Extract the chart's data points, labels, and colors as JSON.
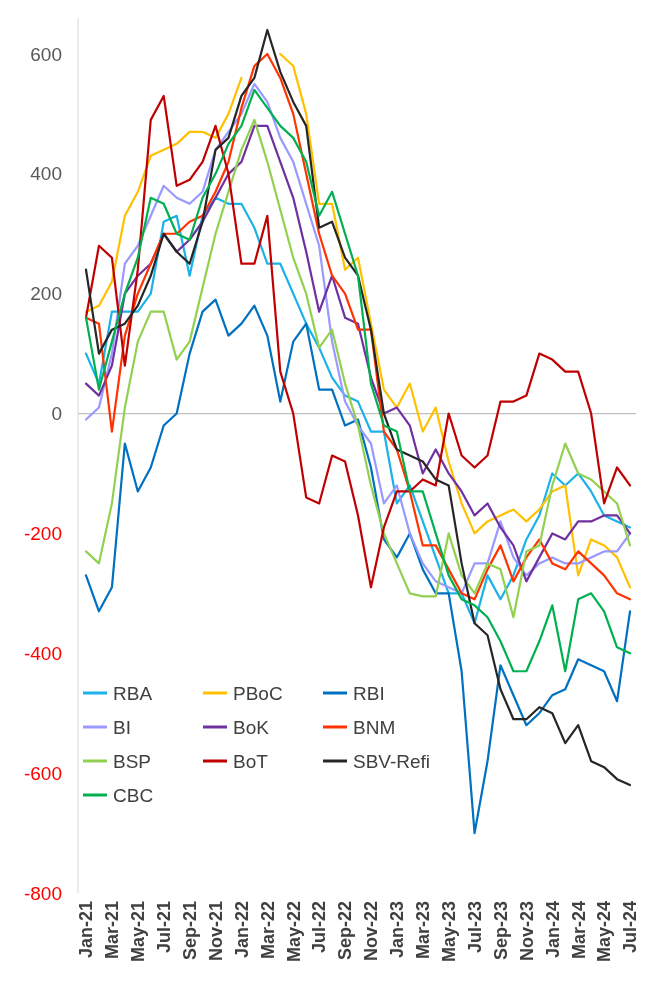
{
  "chart_data": {
    "type": "line",
    "categories": [
      "Jan-21",
      null,
      "Mar-21",
      null,
      "May-21",
      null,
      "Jul-21",
      null,
      "Sep-21",
      null,
      "Nov-21",
      null,
      "Jan-22",
      null,
      "Mar-22",
      null,
      "May-22",
      null,
      "Jul-22",
      null,
      "Sep-22",
      null,
      "Nov-22",
      null,
      "Jan-23",
      null,
      "Mar-23",
      null,
      "May-23",
      null,
      "Jul-23",
      null,
      "Sep-23",
      null,
      "Nov-23",
      null,
      "Jan-24",
      null,
      "Mar-24",
      null,
      "May-24",
      null,
      "Jul-24"
    ],
    "ylim": [
      -800,
      660
    ],
    "yticks": [
      -800,
      -600,
      -400,
      -200,
      0,
      200,
      400,
      600
    ],
    "legend": "bottom left",
    "marker": "none",
    "line_style": "solid",
    "series": [
      {
        "name": "RBA",
        "color": "#1ab2e8",
        "values": [
          100,
          50,
          170,
          170,
          170,
          200,
          320,
          330,
          230,
          330,
          360,
          350,
          350,
          310,
          250,
          250,
          200,
          150,
          110,
          60,
          30,
          20,
          -30,
          -30,
          -150,
          -120,
          -180,
          -240,
          -300,
          -300,
          -350,
          -270,
          -310,
          -270,
          -210,
          -170,
          -100,
          -120,
          -100,
          -130,
          -170,
          -180,
          -190
        ]
      },
      {
        "name": "PBoC",
        "color": "#ffc000",
        "values": [
          170,
          180,
          220,
          330,
          370,
          430,
          440,
          450,
          470,
          470,
          460,
          500,
          560,
          null,
          null,
          600,
          580,
          500,
          350,
          350,
          240,
          260,
          150,
          40,
          10,
          50,
          -30,
          10,
          -80,
          -150,
          -200,
          -180,
          -170,
          -160,
          -180,
          -160,
          -130,
          -120,
          -270,
          -210,
          -220,
          -240,
          -290
        ]
      },
      {
        "name": "RBI",
        "color": "#0070c0",
        "values": [
          -270,
          -330,
          -290,
          -50,
          -130,
          -90,
          -20,
          0,
          100,
          170,
          190,
          130,
          150,
          180,
          130,
          20,
          120,
          150,
          40,
          40,
          -20,
          -10,
          -90,
          -210,
          -240,
          -200,
          -260,
          -300,
          -300,
          -430,
          -700,
          -580,
          -420,
          -470,
          -520,
          -500,
          -470,
          -460,
          -410,
          -420,
          -430,
          -480,
          -330
        ]
      },
      {
        "name": "BI",
        "color": "#9999ff",
        "values": [
          -10,
          10,
          100,
          250,
          280,
          330,
          380,
          360,
          350,
          370,
          440,
          470,
          500,
          550,
          520,
          460,
          420,
          350,
          280,
          120,
          20,
          -20,
          -50,
          -150,
          -120,
          -200,
          -250,
          -280,
          -290,
          -300,
          -250,
          -250,
          -180,
          -240,
          -270,
          -250,
          -240,
          -250,
          -250,
          -240,
          -230,
          -230,
          -200
        ]
      },
      {
        "name": "BoK",
        "color": "#7030a0",
        "values": [
          50,
          30,
          80,
          200,
          230,
          250,
          300,
          270,
          290,
          320,
          360,
          400,
          420,
          480,
          480,
          420,
          360,
          270,
          170,
          230,
          160,
          150,
          60,
          0,
          10,
          -20,
          -100,
          -60,
          -100,
          -130,
          -170,
          -150,
          -190,
          -220,
          -280,
          -240,
          -200,
          -210,
          -180,
          -180,
          -170,
          -170,
          -200
        ]
      },
      {
        "name": "BNM",
        "color": "#ff3300",
        "values": [
          160,
          150,
          -30,
          130,
          200,
          250,
          300,
          300,
          320,
          330,
          370,
          420,
          510,
          580,
          600,
          560,
          500,
          400,
          300,
          230,
          200,
          140,
          140,
          -30,
          -60,
          -130,
          -220,
          -220,
          -260,
          -300,
          -310,
          -260,
          -220,
          -280,
          -240,
          -210,
          -250,
          -260,
          -230,
          -250,
          -270,
          -300,
          -310
        ]
      },
      {
        "name": "BSP",
        "color": "#92d050",
        "values": [
          -230,
          -250,
          -150,
          10,
          120,
          170,
          170,
          90,
          120,
          210,
          300,
          370,
          440,
          490,
          420,
          340,
          260,
          200,
          110,
          140,
          50,
          -20,
          -120,
          -200,
          -250,
          -300,
          -305,
          -305,
          -200,
          -270,
          -300,
          -250,
          -260,
          -340,
          -230,
          -220,
          -120,
          -50,
          -100,
          -110,
          -130,
          -150,
          -220
        ]
      },
      {
        "name": "BoT",
        "color": "#c00000",
        "values": [
          160,
          280,
          260,
          80,
          240,
          490,
          530,
          380,
          390,
          420,
          480,
          400,
          250,
          250,
          330,
          70,
          0,
          -140,
          -150,
          -70,
          -80,
          -170,
          -290,
          -190,
          -130,
          -130,
          -110,
          -120,
          0,
          -70,
          -90,
          -70,
          20,
          20,
          30,
          100,
          90,
          70,
          70,
          0,
          -150,
          -90,
          -120
        ]
      },
      {
        "name": "SBV-Refi",
        "color": "#262626",
        "values": [
          240,
          100,
          140,
          150,
          180,
          230,
          300,
          270,
          250,
          320,
          440,
          460,
          530,
          560,
          640,
          570,
          520,
          480,
          310,
          320,
          260,
          230,
          140,
          0,
          -60,
          -70,
          -80,
          -110,
          -120,
          -250,
          -350,
          -370,
          -460,
          -510,
          -510,
          -490,
          -500,
          -550,
          -520,
          -580,
          -590,
          -610,
          -620
        ]
      },
      {
        "name": "CBC",
        "color": "#00b050",
        "values": [
          160,
          40,
          120,
          200,
          260,
          360,
          350,
          300,
          290,
          360,
          400,
          450,
          480,
          540,
          510,
          480,
          460,
          420,
          330,
          370,
          300,
          230,
          50,
          -20,
          -30,
          -130,
          -130,
          -200,
          -270,
          -310,
          -320,
          -340,
          -380,
          -430,
          -430,
          -380,
          -320,
          -430,
          -310,
          -300,
          -330,
          -390,
          -400
        ]
      }
    ]
  }
}
